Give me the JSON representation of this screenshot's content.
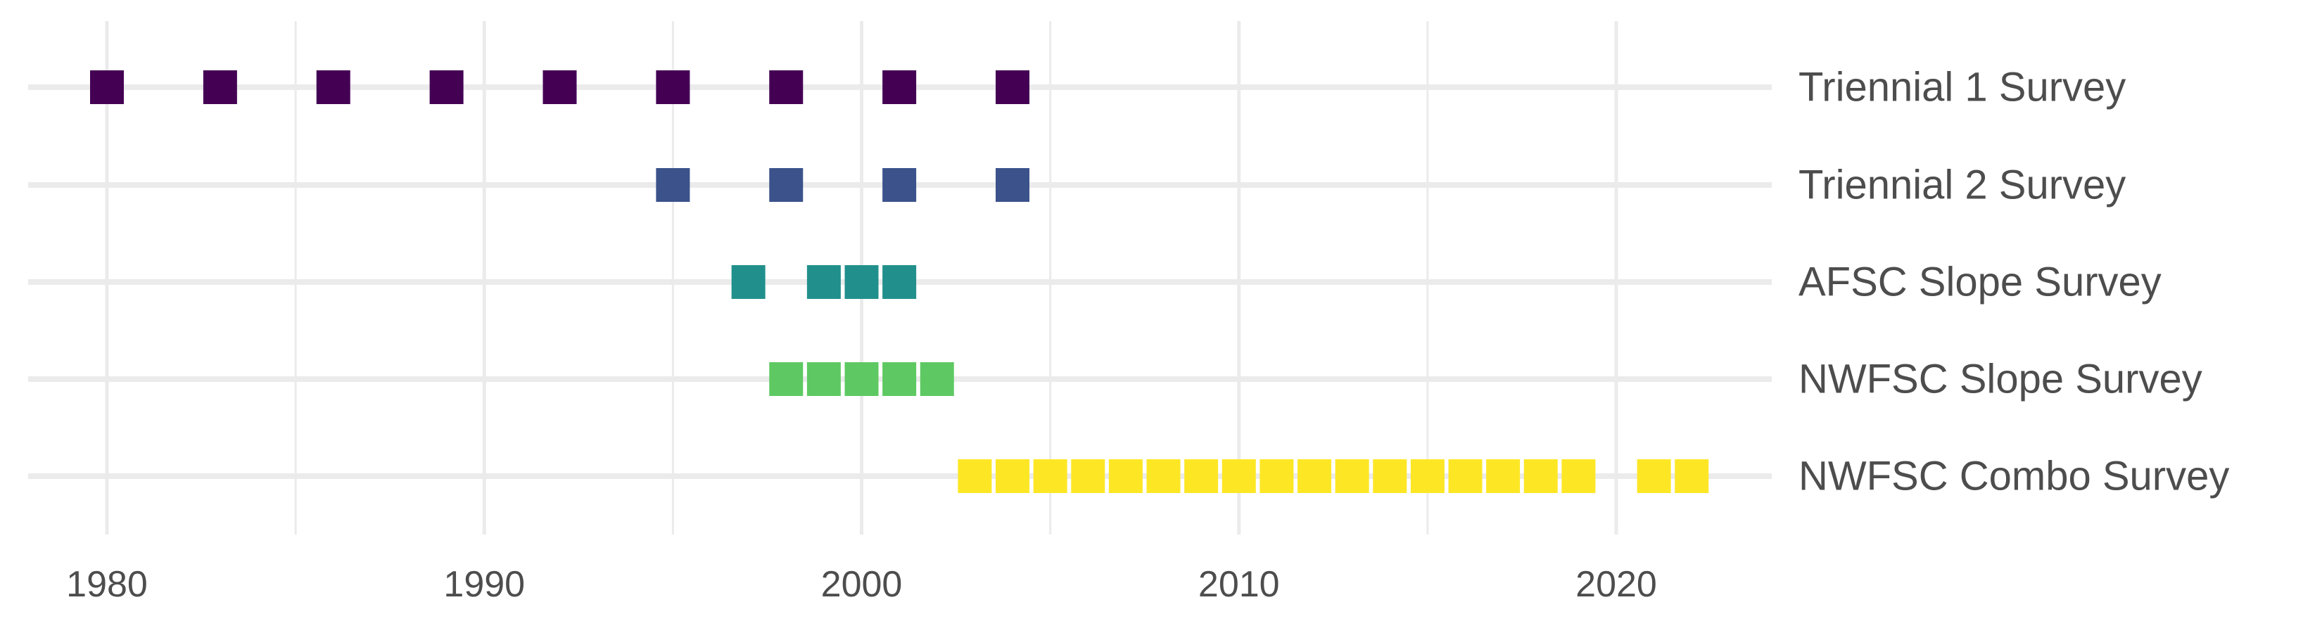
{
  "chart_data": {
    "type": "scatter",
    "title": "",
    "xlabel": "",
    "ylabel": "",
    "xlim": [
      1978,
      2024
    ],
    "x_ticks": [
      1980,
      1990,
      2000,
      2010,
      2020
    ],
    "x_tick_labels": [
      "1980",
      "1990",
      "2000",
      "2010",
      "2020"
    ],
    "grid": true,
    "legend": "none",
    "marker": "square",
    "series": [
      {
        "name": "Triennial 1 Survey",
        "color": "#440154",
        "x": [
          1980,
          1983,
          1986,
          1989,
          1992,
          1995,
          1998,
          2001,
          2004
        ]
      },
      {
        "name": "Triennial 2 Survey",
        "color": "#3b528b",
        "x": [
          1995,
          1998,
          2001,
          2004
        ]
      },
      {
        "name": "AFSC Slope Survey",
        "color": "#21908c",
        "x": [
          1997,
          1999,
          2000,
          2001
        ]
      },
      {
        "name": "NWFSC Slope Survey",
        "color": "#5ec962",
        "x": [
          1998,
          1999,
          2000,
          2001,
          2002
        ]
      },
      {
        "name": "NWFSC Combo Survey",
        "color": "#fde725",
        "x": [
          2003,
          2004,
          2005,
          2006,
          2007,
          2008,
          2009,
          2010,
          2011,
          2012,
          2013,
          2014,
          2015,
          2016,
          2017,
          2018,
          2019,
          2021,
          2022
        ]
      }
    ]
  }
}
